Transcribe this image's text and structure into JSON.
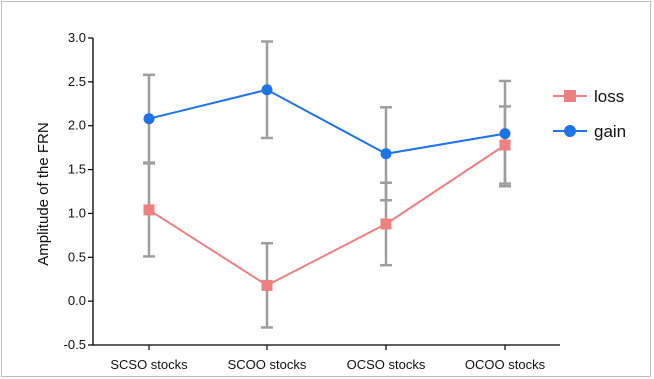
{
  "chart_data": {
    "type": "line",
    "ylabel": "Amplitude of the FRN",
    "xlabel": "",
    "categories": [
      "SCSO stocks",
      "SCOO stocks",
      "OCSO stocks",
      "OCOO stocks"
    ],
    "ylim": [
      -0.5,
      3.0
    ],
    "yticks": [
      "3.0",
      "2.5",
      "2.0",
      "1.5",
      "1.0",
      "0.5",
      "0.0",
      "-0.5"
    ],
    "ytick_values": [
      3.0,
      2.5,
      2.0,
      1.5,
      1.0,
      0.5,
      0.0,
      -0.5
    ],
    "grid": false,
    "legend_position": "right",
    "series": [
      {
        "name": "loss",
        "marker": "square",
        "color": "#f08080",
        "values": [
          1.04,
          0.18,
          0.88,
          1.78
        ],
        "error": [
          0.53,
          0.48,
          0.47,
          0.44
        ]
      },
      {
        "name": "gain",
        "marker": "circle",
        "color": "#1e73e8",
        "values": [
          2.08,
          2.41,
          1.68,
          1.91
        ],
        "error": [
          0.5,
          0.55,
          0.53,
          0.6
        ]
      }
    ],
    "error_bar_color": "#9e9e9e"
  }
}
